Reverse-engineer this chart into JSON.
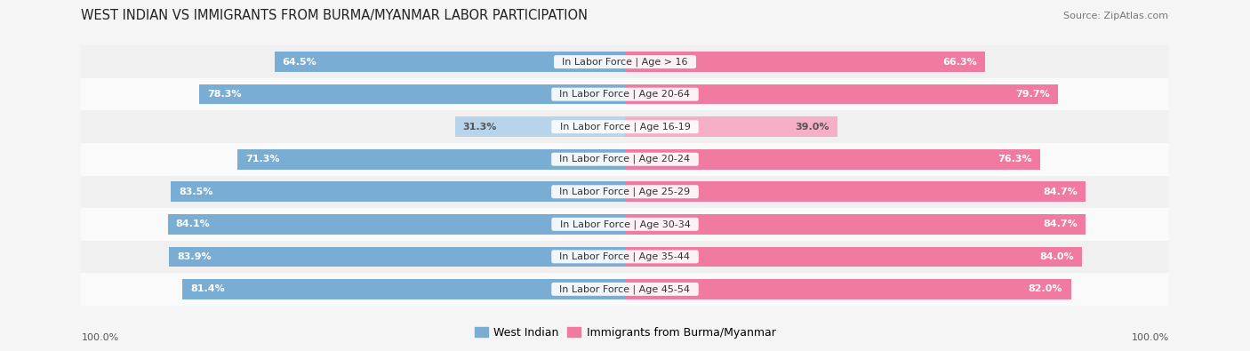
{
  "title": "WEST INDIAN VS IMMIGRANTS FROM BURMA/MYANMAR LABOR PARTICIPATION",
  "source": "Source: ZipAtlas.com",
  "categories": [
    "In Labor Force | Age > 16",
    "In Labor Force | Age 20-64",
    "In Labor Force | Age 16-19",
    "In Labor Force | Age 20-24",
    "In Labor Force | Age 25-29",
    "In Labor Force | Age 30-34",
    "In Labor Force | Age 35-44",
    "In Labor Force | Age 45-54"
  ],
  "west_indian": [
    64.5,
    78.3,
    31.3,
    71.3,
    83.5,
    84.1,
    83.9,
    81.4
  ],
  "burma": [
    66.3,
    79.7,
    39.0,
    76.3,
    84.7,
    84.7,
    84.0,
    82.0
  ],
  "west_indian_color": "#7aadd4",
  "burma_color": "#f07aa0",
  "west_indian_light_color": "#b8d4eb",
  "burma_light_color": "#f5b0c8",
  "row_bg_light": "#f0f0f0",
  "row_bg_white": "#fafafa",
  "fig_bg": "#f5f5f5",
  "bar_height": 0.62,
  "label_fontsize": 8.0,
  "title_fontsize": 10.5,
  "source_fontsize": 8.0,
  "legend_fontsize": 9.0,
  "value_fontsize": 8.0,
  "axis_label_fontsize": 8.0,
  "max_val": 100.0,
  "legend_labels": [
    "West Indian",
    "Immigrants from Burma/Myanmar"
  ],
  "legend_colors": [
    "#7aadd4",
    "#f07aa0"
  ]
}
